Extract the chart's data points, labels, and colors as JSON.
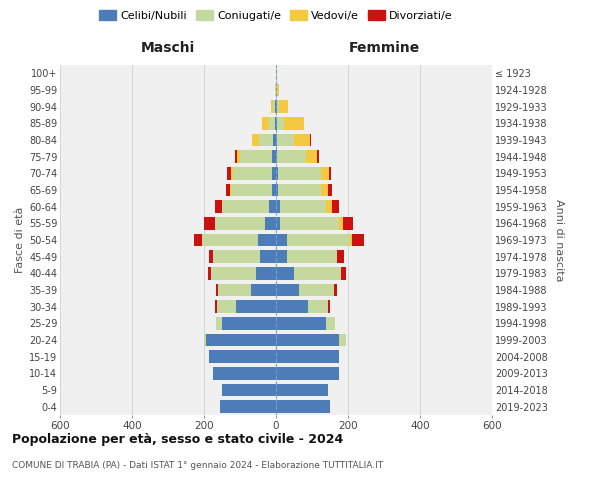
{
  "age_groups": [
    "0-4",
    "5-9",
    "10-14",
    "15-19",
    "20-24",
    "25-29",
    "30-34",
    "35-39",
    "40-44",
    "45-49",
    "50-54",
    "55-59",
    "60-64",
    "65-69",
    "70-74",
    "75-79",
    "80-84",
    "85-89",
    "90-94",
    "95-99",
    "100+"
  ],
  "birth_years": [
    "2019-2023",
    "2014-2018",
    "2009-2013",
    "2004-2008",
    "1999-2003",
    "1994-1998",
    "1989-1993",
    "1984-1988",
    "1979-1983",
    "1974-1978",
    "1969-1973",
    "1964-1968",
    "1959-1963",
    "1954-1958",
    "1949-1953",
    "1944-1948",
    "1939-1943",
    "1934-1938",
    "1929-1933",
    "1924-1928",
    "≤ 1923"
  ],
  "maschi": {
    "celibi": [
      155,
      150,
      175,
      185,
      195,
      150,
      110,
      70,
      55,
      45,
      50,
      30,
      20,
      10,
      10,
      10,
      8,
      4,
      2,
      0,
      0
    ],
    "coniugati": [
      0,
      0,
      0,
      0,
      5,
      18,
      55,
      90,
      125,
      130,
      155,
      140,
      130,
      115,
      110,
      90,
      40,
      15,
      5,
      2,
      0
    ],
    "vedovi": [
      0,
      0,
      0,
      0,
      0,
      0,
      0,
      0,
      0,
      0,
      0,
      0,
      0,
      4,
      6,
      8,
      20,
      20,
      8,
      2,
      0
    ],
    "divorziati": [
      0,
      0,
      0,
      0,
      0,
      0,
      5,
      8,
      10,
      12,
      22,
      30,
      20,
      10,
      10,
      5,
      0,
      0,
      0,
      0,
      0
    ]
  },
  "femmine": {
    "nubili": [
      150,
      145,
      175,
      175,
      175,
      140,
      90,
      65,
      50,
      30,
      30,
      10,
      10,
      6,
      6,
      4,
      4,
      2,
      2,
      0,
      0
    ],
    "coniugate": [
      0,
      0,
      0,
      0,
      20,
      25,
      55,
      95,
      130,
      140,
      175,
      165,
      130,
      120,
      120,
      80,
      45,
      20,
      5,
      2,
      0
    ],
    "vedove": [
      0,
      0,
      0,
      0,
      0,
      0,
      0,
      0,
      0,
      0,
      5,
      10,
      15,
      18,
      20,
      30,
      45,
      55,
      25,
      5,
      2
    ],
    "divorziate": [
      0,
      0,
      0,
      0,
      0,
      0,
      5,
      10,
      15,
      20,
      35,
      30,
      20,
      12,
      8,
      5,
      2,
      2,
      2,
      0,
      0
    ]
  },
  "colors": {
    "celibi": "#4d7db8",
    "coniugati": "#c5d89d",
    "vedovi": "#f5c842",
    "divorziati": "#cc1111"
  },
  "xlim": 600,
  "xlabel_left": "Maschi",
  "xlabel_right": "Femmine",
  "ylabel_left": "Fasce di età",
  "ylabel_right": "Anni di nascita",
  "title1": "Popolazione per età, sesso e stato civile - 2024",
  "title2": "COMUNE DI TRABIA (PA) - Dati ISTAT 1° gennaio 2024 - Elaborazione TUTTITALIA.IT",
  "legend_labels": [
    "Celibi/Nubili",
    "Coniugati/e",
    "Vedovi/e",
    "Divorziati/e"
  ],
  "background_color": "#f0f0f0",
  "grid_color": "#d0d0d0"
}
